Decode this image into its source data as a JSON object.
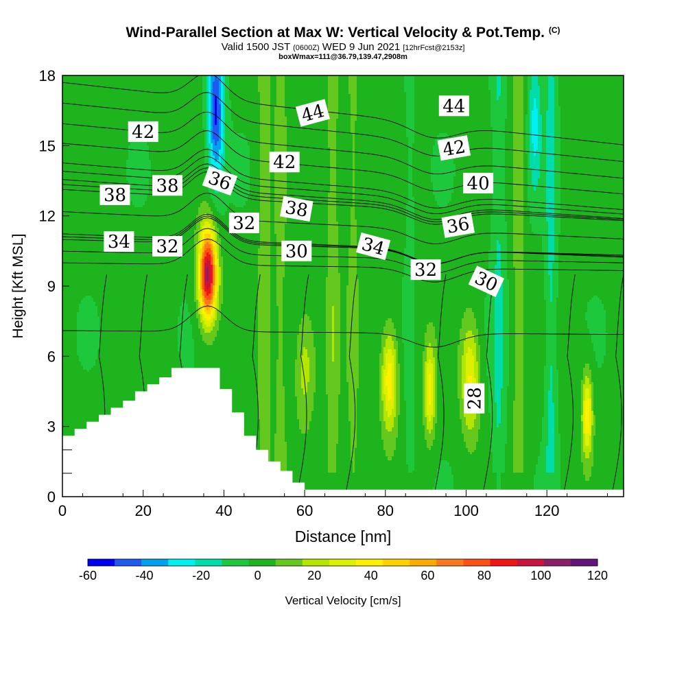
{
  "header": {
    "title": "Wind-Parallel Section at Max W: Vertical Velocity & Pot.Temp.",
    "copyright": "(C)",
    "valid_prefix": "Valid 1500 JST",
    "valid_utc": "(0600Z)",
    "valid_date": "WED 9 Jun 2021",
    "forecast": "[12hrFcst@2153z]",
    "boxwmax": "boxWmax=111@36.79,139.47,2908m"
  },
  "chart_data": {
    "type": "heatmap",
    "xlabel": "Distance [nm]",
    "ylabel": "Height [Kft MSL]",
    "xlim": [
      0,
      139
    ],
    "ylim": [
      0,
      18
    ],
    "x_ticks": [
      0,
      20,
      40,
      60,
      80,
      100,
      120
    ],
    "y_ticks": [
      0,
      3,
      6,
      9,
      12,
      15,
      18
    ],
    "colorbar": {
      "label": "Vertical Velocity [cm/s]",
      "ticks": [
        -60,
        -40,
        -20,
        0,
        20,
        40,
        60,
        80,
        100,
        120
      ],
      "bins": [
        -60,
        -50,
        -40,
        -30,
        -20,
        -10,
        0,
        10,
        20,
        30,
        40,
        50,
        60,
        70,
        80,
        90,
        100,
        110,
        120
      ],
      "colors": [
        "#0000f0",
        "#1e5af0",
        "#00a0f0",
        "#00f0f0",
        "#00dcaa",
        "#1ec83c",
        "#1eb41e",
        "#64c81e",
        "#b4e600",
        "#dcf000",
        "#fff000",
        "#ffd200",
        "#ffaa00",
        "#ff781e",
        "#ff5014",
        "#f01414",
        "#c8143c",
        "#8c1e64",
        "#641478"
      ]
    },
    "w_features": [
      {
        "x": 36,
        "z": 9.5,
        "peak": 111
      },
      {
        "x": 81,
        "z": 5.0,
        "peak": 45
      },
      {
        "x": 91,
        "z": 4.5,
        "peak": 40
      },
      {
        "x": 101,
        "z": 5.0,
        "peak": 38
      },
      {
        "x": 130,
        "z": 3.5,
        "peak": 45
      },
      {
        "x": 60,
        "z": 5.5,
        "peak": 22
      },
      {
        "x": 38,
        "z": 16.5,
        "peak": -55
      },
      {
        "x": 117,
        "z": 16.0,
        "peak": -25
      }
    ],
    "theta_contours": {
      "interval": 1,
      "labeled": [
        {
          "value": 28,
          "x": 102,
          "z": 4.2
        },
        {
          "value": 30,
          "x": 58,
          "z": 10.5
        },
        {
          "value": 30,
          "x": 105,
          "z": 9.2
        },
        {
          "value": 32,
          "x": 26,
          "z": 10.7
        },
        {
          "value": 32,
          "x": 45,
          "z": 11.7
        },
        {
          "value": 32,
          "x": 90,
          "z": 9.7
        },
        {
          "value": 34,
          "x": 14,
          "z": 10.9
        },
        {
          "value": 34,
          "x": 77,
          "z": 10.7
        },
        {
          "value": 36,
          "x": 39,
          "z": 13.5
        },
        {
          "value": 36,
          "x": 98,
          "z": 11.6
        },
        {
          "value": 38,
          "x": 13,
          "z": 12.9
        },
        {
          "value": 38,
          "x": 26,
          "z": 13.3
        },
        {
          "value": 38,
          "x": 58,
          "z": 12.3
        },
        {
          "value": 40,
          "x": 103,
          "z": 13.4
        },
        {
          "value": 42,
          "x": 20,
          "z": 15.6
        },
        {
          "value": 42,
          "x": 55,
          "z": 14.3
        },
        {
          "value": 42,
          "x": 97,
          "z": 14.9
        },
        {
          "value": 44,
          "x": 62,
          "z": 16.4
        },
        {
          "value": 44,
          "x": 97,
          "z": 16.7
        }
      ]
    },
    "terrain": [
      [
        0,
        2.6
      ],
      [
        3,
        2.6
      ],
      [
        3,
        2.9
      ],
      [
        6,
        2.9
      ],
      [
        6,
        3.2
      ],
      [
        9,
        3.2
      ],
      [
        9,
        3.5
      ],
      [
        12,
        3.5
      ],
      [
        12,
        3.8
      ],
      [
        15,
        3.8
      ],
      [
        15,
        4.1
      ],
      [
        18,
        4.1
      ],
      [
        18,
        4.5
      ],
      [
        21,
        4.5
      ],
      [
        21,
        4.8
      ],
      [
        24,
        4.8
      ],
      [
        24,
        5.1
      ],
      [
        27,
        5.1
      ],
      [
        27,
        5.5
      ],
      [
        39,
        5.5
      ],
      [
        39,
        4.6
      ],
      [
        42,
        4.6
      ],
      [
        42,
        3.6
      ],
      [
        45,
        3.6
      ],
      [
        45,
        2.6
      ],
      [
        48,
        2.6
      ],
      [
        48,
        2.0
      ],
      [
        51,
        2.0
      ],
      [
        51,
        1.5
      ],
      [
        54,
        1.5
      ],
      [
        54,
        1.1
      ],
      [
        57,
        1.1
      ],
      [
        57,
        0.6
      ],
      [
        60,
        0.6
      ],
      [
        60,
        0.3
      ],
      [
        139,
        0.3
      ]
    ]
  }
}
